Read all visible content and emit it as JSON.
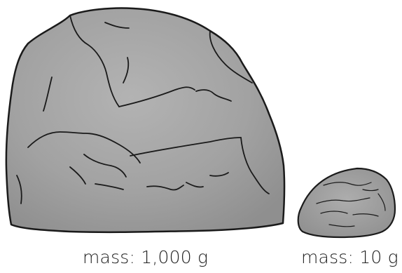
{
  "rocks": {
    "large": {
      "label": "mass: 1,000 g",
      "color": "#a3a3a3"
    },
    "small": {
      "label": "mass: 10 g",
      "color": "#a3a3a3"
    }
  },
  "colors": {
    "rock_fill": "#a3a3a3",
    "rock_outline": "#1a1a1a",
    "background": "#ffffff"
  }
}
